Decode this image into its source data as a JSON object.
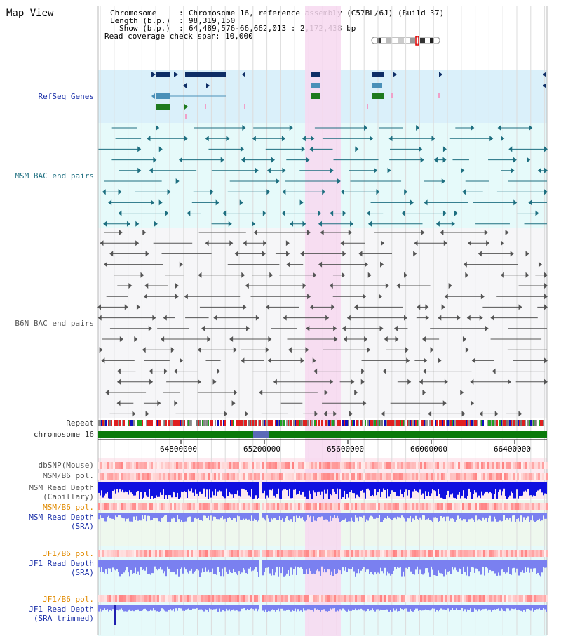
{
  "page": {
    "title": "Map View"
  },
  "info": {
    "chromosome_key": "Chromosome",
    "chromosome_val": "Chromosome 16, reference assembly (C57BL/6J) (Build 37)",
    "length_key": "Length (b.p.)",
    "length_val": "98,319,150",
    "show_key": "Show (b.p.)",
    "show_val": "64,489,576-66,662,013 : 2,172,438 bp",
    "coverage_key": "Read coverage check span",
    "coverage_val": "10,000"
  },
  "tracks": {
    "refseq": "RefSeq Genes",
    "msm_bac": "MSM BAC end pairs",
    "b6n_bac": "B6N BAC end pairs",
    "repeat": "Repeat",
    "chromosome": "chromosome 16",
    "dbsnp": "dbSNP(Mouse)",
    "msm_b6_pol": "MSM/B6 pol.",
    "msm_read_depth_cap_1": "MSM Read Depth",
    "msm_read_depth_cap_2": "(Capillary)",
    "msm_b6_pol_2": "MSM/B6 pol.",
    "msm_read_depth_sra_1": "MSM Read Depth",
    "msm_read_depth_sra_2": "(SRA)",
    "jf1_b6_pol": "JF1/B6 pol.",
    "jf1_read_depth_1": "JF1 Read Depth",
    "jf1_read_depth_2": "(SRA)",
    "jf1_b6_pol_2": "JF1/B6 pol.",
    "jf1_read_depth_trim_1": "JF1 Read Depth",
    "jf1_read_depth_trim_2": "(SRA trimmed)"
  },
  "axis": {
    "ticks": [
      "64800000",
      "65200000",
      "65600000",
      "66000000",
      "66400000"
    ]
  },
  "colors": {
    "refseq_bg": "#daf0fa",
    "msm_bg": "#e6fafa",
    "highlight": "#f7d8f0",
    "chrom_bar": "#0b7a0b",
    "gene_dark": "#0e2e66",
    "gene_mid": "#4a90b8",
    "gene_green": "#1e7a1e",
    "gene_pink": "#f0a0c8",
    "msm_feature": "#1e6f80",
    "b6n_feature": "#555555",
    "snp_red": "#f04040",
    "depth_blue": "#1010e0",
    "depth_light": "#7a80f0"
  }
}
